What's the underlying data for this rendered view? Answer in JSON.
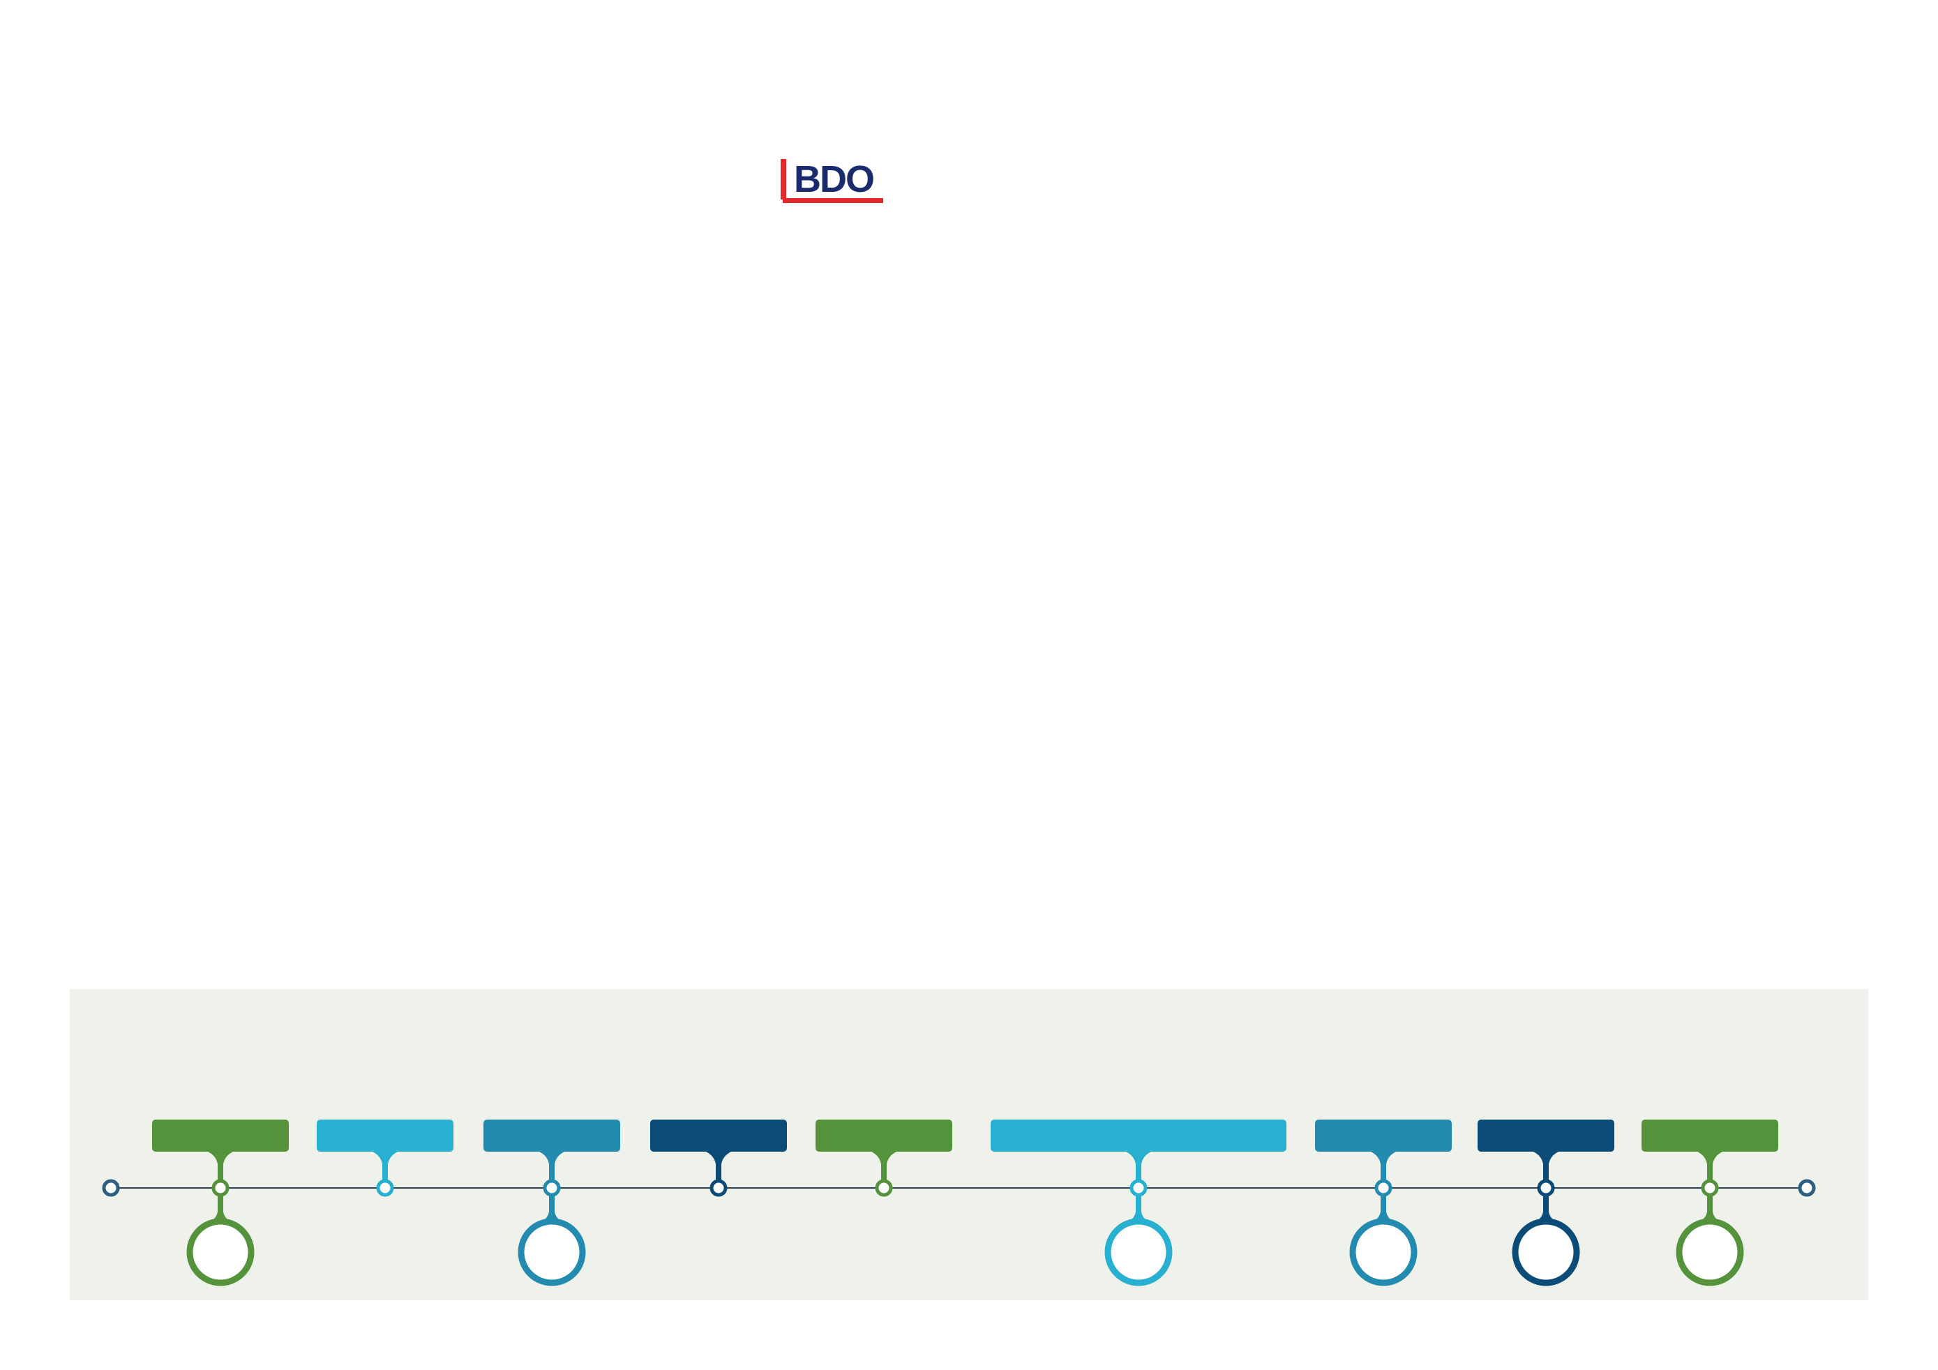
{
  "brand": {
    "logo_text": "BDO",
    "colors": {
      "blue": "#1a2b6d",
      "red": "#e4262b"
    }
  },
  "timeline": {
    "panel_color": "#eef2eb",
    "line_color": "#2c3e50",
    "end_cap_color": "#2e5f80",
    "milestones": [
      {
        "color": "#54923b",
        "has_circle": true
      },
      {
        "color": "#27b0d0",
        "has_circle": false
      },
      {
        "color": "#238bb0",
        "has_circle": true
      },
      {
        "color": "#0a4b78",
        "has_circle": false
      },
      {
        "color": "#54923b",
        "has_circle": false
      },
      {
        "color": "#27b0d0",
        "has_circle": true,
        "wide": true
      },
      {
        "color": "#238bb0",
        "has_circle": true
      },
      {
        "color": "#0a4b78",
        "has_circle": true
      },
      {
        "color": "#54923b",
        "has_circle": true
      }
    ]
  }
}
